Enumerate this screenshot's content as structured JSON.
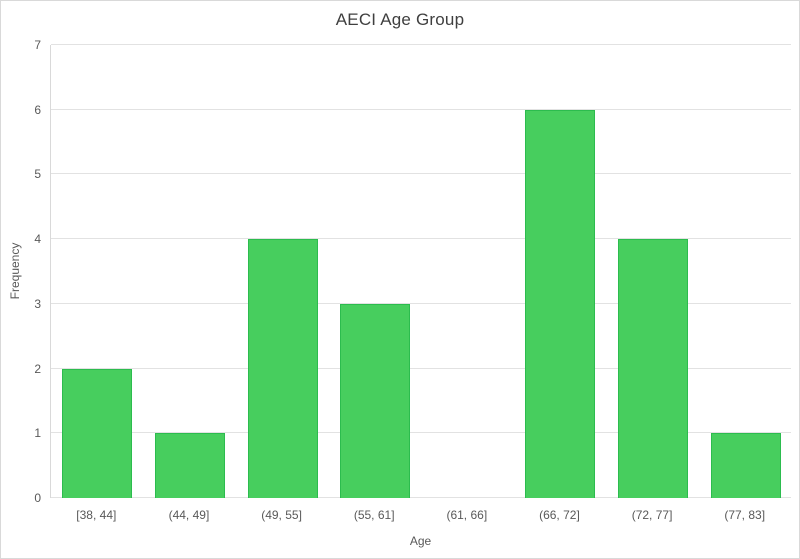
{
  "chart_data": {
    "type": "bar",
    "title": "AECI Age Group",
    "xlabel": "Age",
    "ylabel": "Frequency",
    "categories": [
      "[38, 44]",
      "(44, 49]",
      "(49, 55]",
      "(55, 61]",
      "(61, 66]",
      "(66, 72]",
      "(72, 77]",
      "(77, 83]"
    ],
    "values": [
      2,
      1,
      4,
      3,
      0,
      6,
      4,
      1
    ],
    "ylim": [
      0,
      7
    ],
    "ytick_step": 1,
    "yticks": [
      0,
      1,
      2,
      3,
      4,
      5,
      6,
      7
    ],
    "grid": "horizontal",
    "legend": "none"
  },
  "colors": {
    "bar_fill": "#47CE5E",
    "bar_border": "#2CBC4E",
    "gridline": "#E2E2E2",
    "plot_border": "#D9D9D9",
    "axis_text": "#595959",
    "title_text": "#3F3F3F",
    "background": "#FFFFFF"
  }
}
